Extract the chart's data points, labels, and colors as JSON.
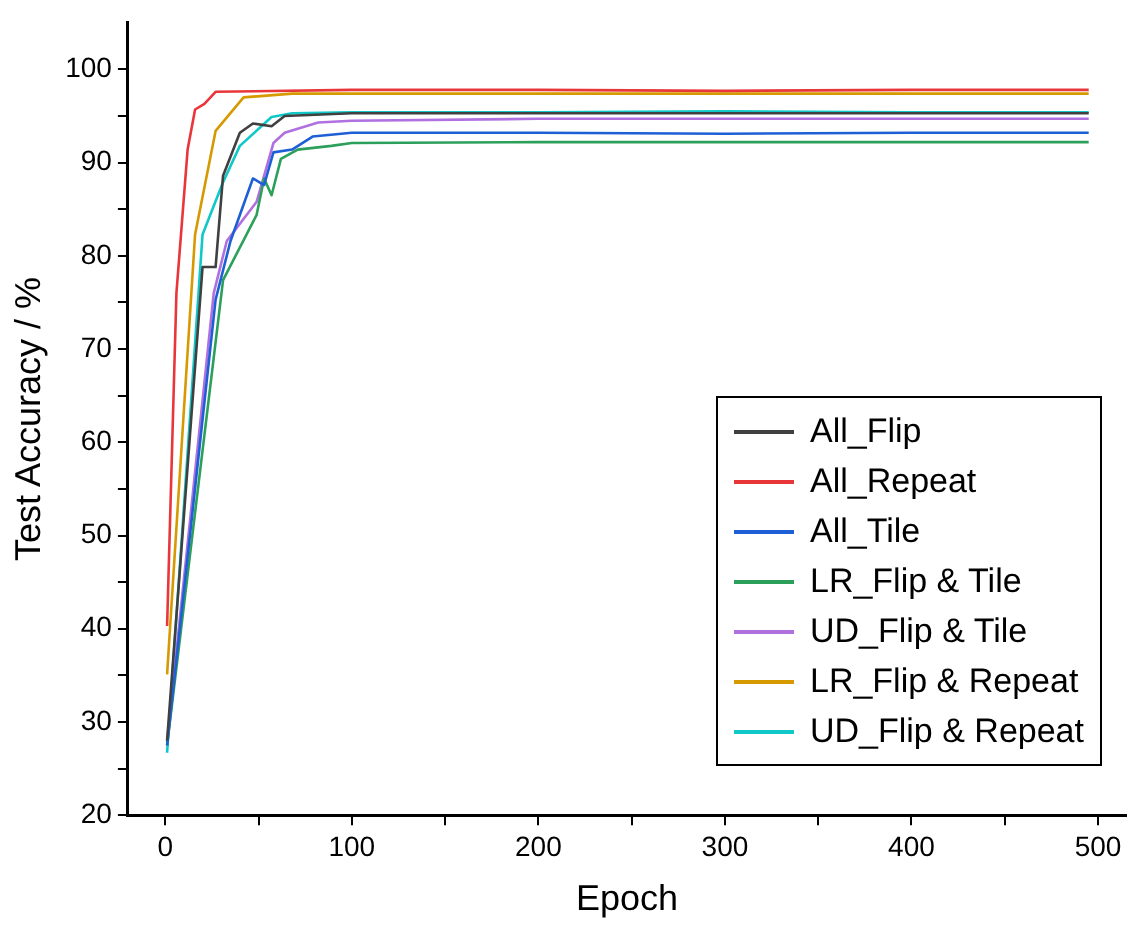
{
  "chart_data": {
    "type": "line",
    "xlabel": "Epoch",
    "ylabel": "Test Accuracy / %",
    "xlim": [
      -20,
      515
    ],
    "ylim": [
      20,
      105
    ],
    "xticks": [
      0,
      {
        "value": 50,
        "label": null
      },
      100,
      {
        "value": 150,
        "label": null
      },
      200,
      {
        "value": 250,
        "label": null
      },
      300,
      {
        "value": 350,
        "label": null
      },
      400,
      {
        "value": 450,
        "label": null
      },
      500
    ],
    "yticks": [
      20,
      {
        "value": 25,
        "label": null
      },
      30,
      {
        "value": 35,
        "label": null
      },
      40,
      {
        "value": 45,
        "label": null
      },
      50,
      {
        "value": 55,
        "label": null
      },
      60,
      {
        "value": 65,
        "label": null
      },
      70,
      {
        "value": 75,
        "label": null
      },
      80,
      {
        "value": 85,
        "label": null
      },
      90,
      {
        "value": 95,
        "label": null
      },
      100
    ],
    "grid": false,
    "legend": "bottom right",
    "marker": "none",
    "line_style": "solid",
    "series": [
      {
        "name": "All_Flip",
        "color": "#404040",
        "x": [
          1,
          20,
          27,
          31,
          40,
          47,
          57,
          64,
          100,
          200,
          300,
          400,
          495
        ],
        "values": [
          28,
          78.8,
          78.8,
          88.6,
          93.2,
          94.2,
          93.9,
          95.0,
          95.3,
          95.3,
          95.3,
          95.3,
          95.3
        ]
      },
      {
        "name": "All_Repeat",
        "color": "#e8363a",
        "x": [
          1,
          6,
          12,
          16,
          21,
          27,
          100,
          200,
          300,
          400,
          495
        ],
        "values": [
          40.3,
          76,
          91.4,
          95.7,
          96.3,
          97.6,
          97.8,
          97.8,
          97.7,
          97.8,
          97.8
        ]
      },
      {
        "name": "All_Tile",
        "color": "#1f5fd6",
        "x": [
          1,
          27,
          35,
          47,
          53,
          58,
          68,
          79,
          100,
          200,
          300,
          400,
          495
        ],
        "values": [
          27.5,
          75.3,
          81.6,
          88.3,
          87.6,
          91.1,
          91.4,
          92.8,
          93.2,
          93.2,
          93.1,
          93.2,
          93.2
        ]
      },
      {
        "name": "LR_Flip & Tile",
        "color": "#2ca05a",
        "x": [
          1,
          31,
          49,
          53,
          57,
          62,
          71,
          89,
          100,
          200,
          300,
          400,
          495
        ],
        "values": [
          27.5,
          77.4,
          84.4,
          88.3,
          86.5,
          90.4,
          91.4,
          91.8,
          92.1,
          92.2,
          92.2,
          92.2,
          92.2
        ]
      },
      {
        "name": "UD_Flip & Tile",
        "color": "#b070e0",
        "x": [
          1,
          26,
          33,
          49,
          58,
          64,
          82,
          100,
          200,
          300,
          400,
          495
        ],
        "values": [
          28,
          76,
          81.6,
          85.8,
          92.1,
          93.2,
          94.3,
          94.5,
          94.7,
          94.7,
          94.7,
          94.7
        ]
      },
      {
        "name": "LR_Flip & Repeat",
        "color": "#d69a00",
        "x": [
          1,
          16,
          27,
          42,
          68,
          100,
          200,
          300,
          400,
          495
        ],
        "values": [
          35.1,
          82.3,
          93.4,
          97.0,
          97.4,
          97.4,
          97.4,
          97.4,
          97.4,
          97.4
        ]
      },
      {
        "name": "UD_Flip & Repeat",
        "color": "#10c8c8",
        "x": [
          1,
          20,
          31,
          40,
          57,
          68,
          100,
          200,
          300,
          400,
          495
        ],
        "values": [
          26.7,
          82.3,
          87.9,
          91.8,
          94.9,
          95.3,
          95.4,
          95.4,
          95.5,
          95.4,
          95.4
        ]
      }
    ]
  }
}
